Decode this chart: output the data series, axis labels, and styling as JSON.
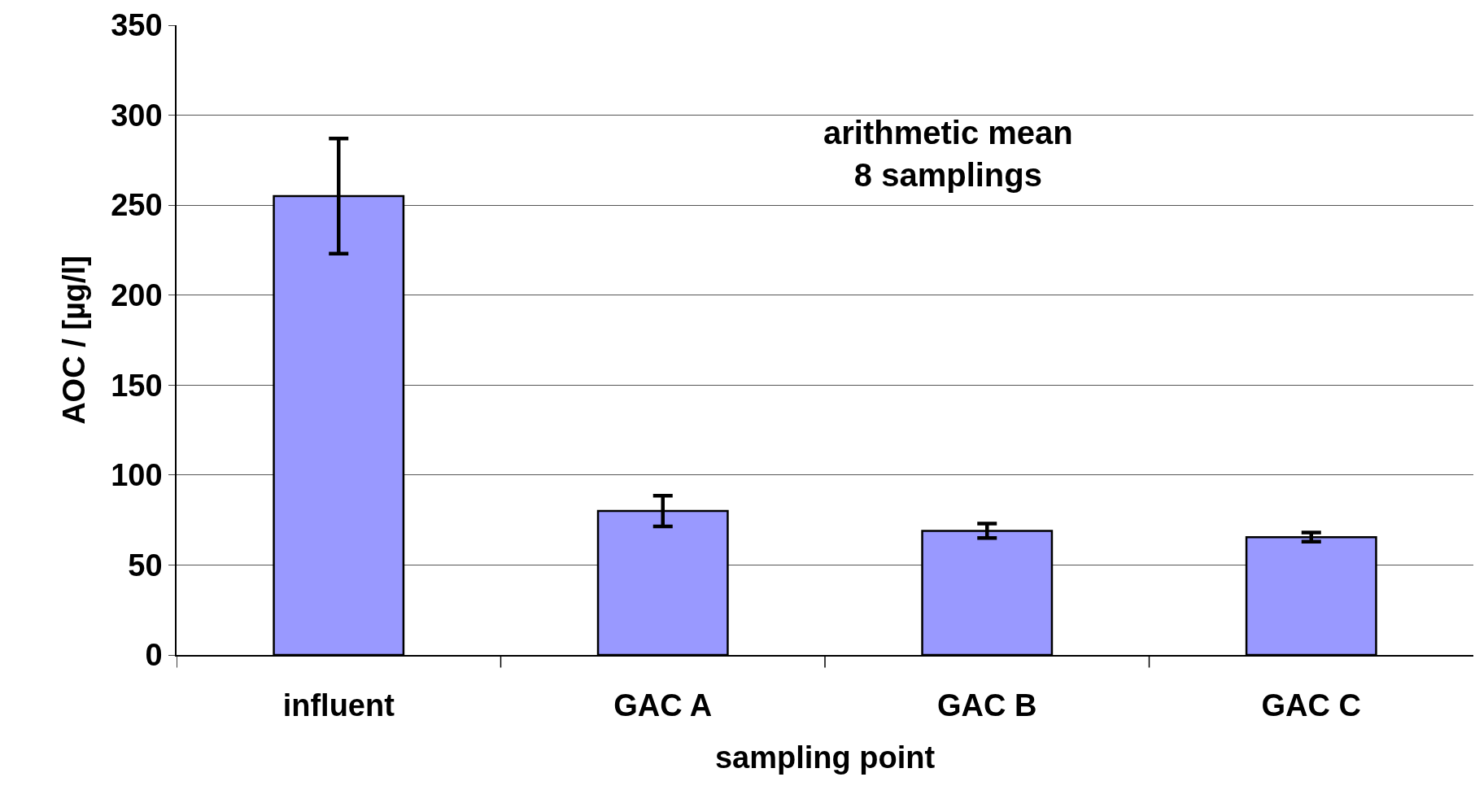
{
  "chart_data": {
    "type": "bar",
    "xlabel": "sampling point",
    "ylabel": "AOC / [µg/l]",
    "annotations": [
      "arithmetic mean\n8 samplings"
    ],
    "categories": [
      "influent",
      "GAC A",
      "GAC B",
      "GAC C"
    ],
    "values": [
      255,
      80,
      69,
      65.5
    ],
    "errors": [
      32,
      8.5,
      4,
      2.5
    ],
    "color": "#9999ff",
    "ylim": [
      0,
      350
    ],
    "yticks": [
      0,
      50,
      100,
      150,
      200,
      250,
      300,
      350
    ],
    "grid": "y"
  }
}
